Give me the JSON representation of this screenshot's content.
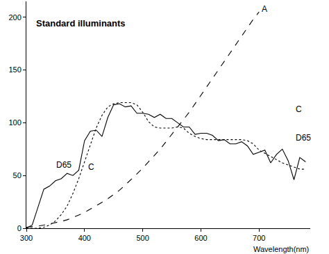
{
  "chart_data": {
    "type": "line",
    "title": "Standard illuminants",
    "x_label": "Wavelength(nm)",
    "x": [
      300,
      310,
      320,
      330,
      340,
      350,
      360,
      370,
      380,
      390,
      400,
      410,
      420,
      430,
      440,
      450,
      460,
      470,
      480,
      490,
      500,
      510,
      520,
      530,
      540,
      550,
      560,
      570,
      580,
      590,
      600,
      610,
      620,
      630,
      640,
      650,
      660,
      670,
      680,
      690,
      700,
      710,
      720,
      730,
      740,
      750,
      760,
      770,
      780
    ],
    "series": [
      {
        "name": "D65",
        "color": "#000000",
        "line_style": "solid",
        "values": [
          0,
          3,
          20,
          37,
          40,
          45,
          47,
          52,
          50,
          55,
          83,
          92,
          93,
          87,
          105,
          117,
          118,
          115,
          116,
          109,
          109,
          108,
          105,
          108,
          104,
          104,
          100,
          96,
          96,
          89,
          90,
          90,
          88,
          83,
          84,
          80,
          80,
          82,
          78,
          70,
          72,
          74,
          62,
          70,
          75,
          64,
          46,
          67,
          63
        ]
      },
      {
        "name": "C",
        "color": "#000000",
        "line_style": "dot",
        "values": [
          0,
          0,
          0,
          1,
          3,
          7,
          13,
          21,
          33,
          47,
          63,
          80,
          95,
          107,
          115,
          118,
          119,
          119,
          119,
          117,
          110,
          101,
          96,
          95,
          95,
          95,
          96,
          95,
          90,
          87,
          85,
          84,
          84,
          84,
          84,
          84,
          84,
          84,
          83,
          80,
          74,
          71,
          68,
          65,
          62,
          60,
          58,
          56,
          56
        ]
      },
      {
        "name": "A",
        "color": "#000000",
        "line_style": "dash",
        "values": [
          1,
          1.5,
          2,
          3,
          4,
          5,
          6.5,
          8,
          10,
          12.5,
          15,
          18,
          21,
          24.5,
          28,
          32,
          36,
          41,
          46,
          51.5,
          57,
          63,
          69,
          75,
          82,
          89,
          96,
          103,
          110,
          118,
          126,
          134,
          142,
          150,
          158,
          166,
          174,
          182,
          190,
          198,
          205,
          null,
          null,
          null,
          null,
          null,
          null,
          null,
          null
        ]
      }
    ],
    "xlim": [
      300,
      788
    ],
    "ylim": [
      0,
      215
    ],
    "xticks": [
      300,
      400,
      500,
      600,
      700
    ],
    "yticks": [
      0,
      50,
      100,
      150,
      200
    ],
    "grid": false,
    "annotations": [
      {
        "text": "A",
        "x": 709,
        "y": 208
      },
      {
        "text": "D65",
        "x": 364,
        "y": 60
      },
      {
        "text": "C",
        "x": 411,
        "y": 58
      },
      {
        "text": "C",
        "x": 768,
        "y": 113
      },
      {
        "text": "D65",
        "x": 776,
        "y": 86
      }
    ]
  }
}
